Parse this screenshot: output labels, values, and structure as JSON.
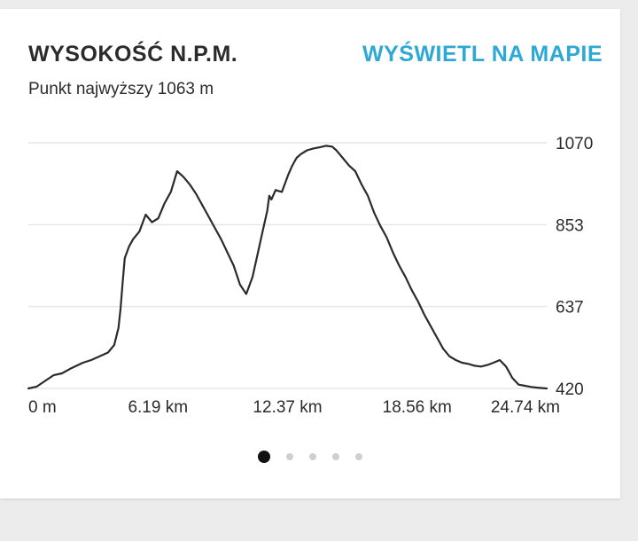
{
  "header": {
    "title": "WYSOKOŚĆ N.P.M.",
    "action_label": "WYŚWIETL NA MAPIE",
    "subtitle": "Punkt najwyższy 1063 m"
  },
  "colors": {
    "accent": "#2ea9d6",
    "line": "#2b2b2b",
    "grid": "#e6e6e6"
  },
  "pagination": {
    "total": 5,
    "active": 0
  },
  "chart_data": {
    "type": "line",
    "title": "",
    "xlabel": "",
    "ylabel": "",
    "x_unit": "km",
    "y_unit": "m",
    "xlim": [
      0,
      24.74
    ],
    "ylim": [
      420,
      1070
    ],
    "x_ticks": [
      "0 m",
      "6.19 km",
      "12.37 km",
      "18.56 km",
      "24.74 km"
    ],
    "y_ticks": [
      "1070",
      "853",
      "637",
      "420"
    ],
    "grid": true,
    "series": [
      {
        "x": [
          0,
          0.4,
          0.8,
          1.2,
          1.6,
          2.0,
          2.3,
          2.6,
          3.0,
          3.4,
          3.8,
          4.1,
          4.3,
          4.4,
          4.5,
          4.6,
          4.8,
          5.0,
          5.3,
          5.6,
          5.9,
          6.2,
          6.5,
          6.8,
          7.1,
          7.4,
          7.7,
          8.0,
          8.3,
          8.6,
          8.9,
          9.2,
          9.5,
          9.8,
          10.1,
          10.4,
          10.7,
          11.0,
          11.2,
          11.4,
          11.5,
          11.6,
          11.8,
          12.1,
          12.4,
          12.6,
          12.8,
          13.0,
          13.3,
          13.6,
          13.9,
          14.2,
          14.5,
          14.7,
          15.0,
          15.3,
          15.6,
          15.9,
          16.2,
          16.5,
          16.8,
          17.1,
          17.4,
          17.7,
          18.0,
          18.3,
          18.6,
          18.9,
          19.2,
          19.5,
          19.8,
          20.1,
          20.4,
          20.7,
          21.0,
          21.3,
          21.6,
          21.9,
          22.2,
          22.5,
          22.8,
          23.1,
          23.4,
          23.7,
          24.0,
          24.3,
          24.74
        ],
        "y": [
          420,
          425,
          440,
          455,
          460,
          472,
          480,
          488,
          495,
          505,
          515,
          535,
          580,
          630,
          700,
          765,
          795,
          815,
          835,
          880,
          860,
          870,
          910,
          940,
          995,
          980,
          960,
          935,
          905,
          875,
          845,
          815,
          780,
          745,
          695,
          670,
          715,
          790,
          840,
          890,
          930,
          920,
          945,
          940,
          985,
          1010,
          1030,
          1040,
          1050,
          1055,
          1058,
          1062,
          1060,
          1050,
          1030,
          1010,
          995,
          960,
          930,
          885,
          850,
          820,
          780,
          745,
          715,
          680,
          650,
          615,
          585,
          555,
          525,
          505,
          495,
          488,
          485,
          480,
          478,
          482,
          488,
          495,
          478,
          448,
          430,
          427,
          424,
          422,
          420
        ]
      }
    ]
  }
}
